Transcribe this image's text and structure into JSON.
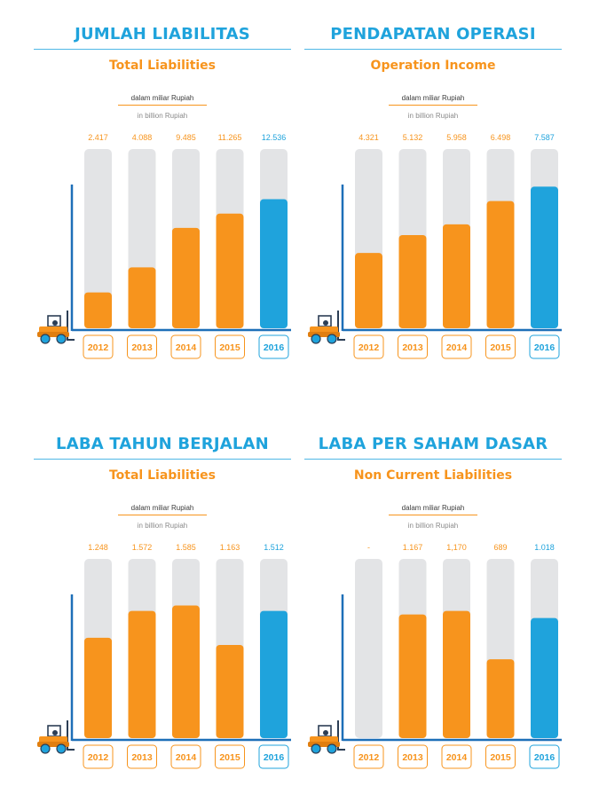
{
  "colors": {
    "accent_blue": "#1fa3dc",
    "accent_orange": "#f7941d",
    "track_grey": "#e3e4e6",
    "axis_blue": "#1d6fb8"
  },
  "icons": [
    "forklift-icon"
  ],
  "panels": [
    {
      "title": "JUMLAH LIABILITAS",
      "subtitle": "Total Liabilities",
      "unit_id": "dalam miliar Rupiah",
      "unit_en": "in billion Rupiah",
      "chart_data": {
        "type": "bar",
        "categories": [
          "2012",
          "2013",
          "2014",
          "2015",
          "2016"
        ],
        "values": [
          2417,
          4088,
          9485,
          11265,
          12536
        ],
        "labels": [
          "2.417",
          "4.088",
          "9.485",
          "11.265",
          "12.536"
        ],
        "fill_fraction": [
          0.2,
          0.34,
          0.56,
          0.64,
          0.72
        ],
        "highlight": "2016"
      }
    },
    {
      "title": "PENDAPATAN OPERASI",
      "subtitle": "Operation Income",
      "unit_id": "dalam miliar Rupiah",
      "unit_en": "in billion Rupiah",
      "chart_data": {
        "type": "bar",
        "categories": [
          "2012",
          "2013",
          "2014",
          "2015",
          "2016"
        ],
        "values": [
          4321,
          5132,
          5958,
          6498,
          7587
        ],
        "labels": [
          "4.321",
          "5.132",
          "5.958",
          "6.498",
          "7.587"
        ],
        "fill_fraction": [
          0.42,
          0.52,
          0.58,
          0.71,
          0.79
        ],
        "highlight": "2016"
      }
    },
    {
      "title": "LABA TAHUN BERJALAN",
      "subtitle": "Total Liabilities",
      "unit_id": "dalam miliar Rupiah",
      "unit_en": "in billion Rupiah",
      "chart_data": {
        "type": "bar",
        "categories": [
          "2012",
          "2013",
          "2014",
          "2015",
          "2016"
        ],
        "values": [
          1248,
          1572,
          1585,
          1163,
          1512
        ],
        "labels": [
          "1.248",
          "1.572",
          "1.585",
          "1.163",
          "1.512"
        ],
        "fill_fraction": [
          0.56,
          0.71,
          0.74,
          0.52,
          0.71
        ],
        "highlight": "2016"
      }
    },
    {
      "title": "LABA PER SAHAM DASAR",
      "subtitle": "Non Current Liabilities",
      "unit_id": "dalam miliar Rupiah",
      "unit_en": "in billion Rupiah",
      "chart_data": {
        "type": "bar",
        "categories": [
          "2012",
          "2013",
          "2014",
          "2015",
          "2016"
        ],
        "values": [
          null,
          1167,
          1170,
          689,
          1018
        ],
        "labels": [
          "-",
          "1.167",
          "1,170",
          "689",
          "1.018"
        ],
        "fill_fraction": [
          0,
          0.69,
          0.71,
          0.44,
          0.67
        ],
        "highlight": "2016"
      }
    }
  ]
}
